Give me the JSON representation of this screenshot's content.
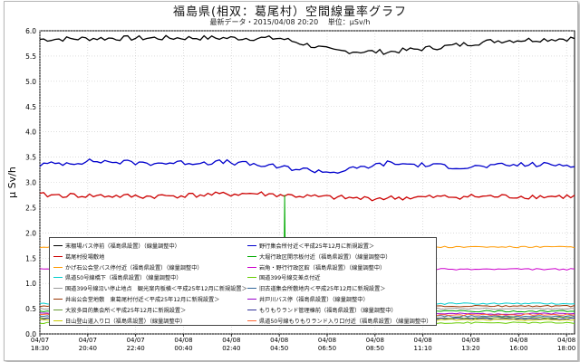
{
  "header": {
    "title": "福島県(相双：葛尾村）空間線量率グラフ",
    "latest_data": "最新データ・2015/04/08 20:20",
    "unit": "単位：μSv/h"
  },
  "chart_data": {
    "type": "line",
    "ylabel": "μ Sv/h",
    "xlabel": "",
    "ylim": [
      0,
      6.0
    ],
    "yticks": [
      "0.0",
      "0.5",
      "1.0",
      "1.5",
      "2.0",
      "2.5",
      "3.0",
      "3.5",
      "4.0",
      "4.5",
      "5.0",
      "5.5",
      "6.0"
    ],
    "xticks": [
      {
        "date": "04/07",
        "time": "18:30"
      },
      {
        "date": "04/07",
        "time": "20:40"
      },
      {
        "date": "04/07",
        "time": "22:40"
      },
      {
        "date": "04/08",
        "time": "00:40"
      },
      {
        "date": "04/08",
        "time": "02:40"
      },
      {
        "date": "04/08",
        "time": "04:50"
      },
      {
        "date": "04/08",
        "time": "06:50"
      },
      {
        "date": "04/08",
        "time": "08:50"
      },
      {
        "date": "04/08",
        "time": "11:10"
      },
      {
        "date": "04/08",
        "time": "13:20"
      },
      {
        "date": "04/08",
        "time": "16:00"
      },
      {
        "date": "04/08",
        "time": "18:00"
      }
    ],
    "grid": true,
    "legend_placement": "lower-left",
    "series": [
      {
        "name": "末棚場バス停前（福島県設置）（線量調整中）",
        "color": "#000000",
        "level": 5.85,
        "points": [
          [
            0,
            5.83
          ],
          [
            0.1,
            5.85
          ],
          [
            0.3,
            5.86
          ],
          [
            0.45,
            5.85
          ],
          [
            0.55,
            5.6
          ],
          [
            0.65,
            5.58
          ],
          [
            0.75,
            5.68
          ],
          [
            0.85,
            5.8
          ],
          [
            1.0,
            5.85
          ]
        ]
      },
      {
        "name": "野行集会所付近＜平成25年12月に新規設置＞",
        "color": "#0000cc",
        "level": 3.35,
        "points": [
          [
            0,
            3.35
          ],
          [
            0.1,
            3.42
          ],
          [
            0.2,
            3.38
          ],
          [
            0.35,
            3.4
          ],
          [
            0.45,
            3.3
          ],
          [
            0.55,
            3.2
          ],
          [
            0.65,
            3.38
          ],
          [
            0.8,
            3.3
          ],
          [
            0.9,
            3.35
          ],
          [
            1.0,
            3.35
          ]
        ]
      },
      {
        "name": "葛尾村役場敷地",
        "color": "#cc0000",
        "level": 2.75,
        "points": [
          [
            0,
            2.75
          ],
          [
            0.2,
            2.72
          ],
          [
            0.4,
            2.78
          ],
          [
            0.5,
            2.72
          ],
          [
            0.6,
            2.68
          ],
          [
            0.8,
            2.72
          ],
          [
            1.0,
            2.72
          ]
        ]
      },
      {
        "name": "大堀行政区開示板付近（福島県設置）（線量調整中）",
        "color": "#00aa00",
        "level": 0.45
      },
      {
        "name": "かげ石公会堂バス停付近（福島県設置）（線量調整中）",
        "color": "#ff9900",
        "level": 1.72
      },
      {
        "name": "岩角・野行行政区館（福島県設置）（線量調整中）",
        "color": "#cc00cc",
        "level": 1.28
      },
      {
        "name": "県道50号線橋下（福島県設置）（線量調整中）",
        "color": "#00cccc",
        "level": 0.6
      },
      {
        "name": "国道399号線交差点付近",
        "color": "#66cc00",
        "level": 0.22
      },
      {
        "name": "国道399号線沿い停止地点　観光案内板横＜平成25年12月に新規設置＞",
        "color": "#999999",
        "level": 0.5
      },
      {
        "name": "旧古道集会所敷地内＜平成25年12月に新規設置＞",
        "color": "#336699",
        "level": 0.35
      },
      {
        "name": "井出公会堂地敷　東葛尾村付近＜平成25年12月に新規設置＞",
        "color": "#993300",
        "level": 0.55
      },
      {
        "name": "井戸川バス停（福島県設置）（線量調整中）",
        "color": "#9900cc",
        "level": 0.4
      },
      {
        "name": "大放多目的集会所＜平成25年12月に新規設置＞",
        "color": "#669933",
        "level": 0.32
      },
      {
        "name": "もりもりランド管理棟前（福島県設置）（線量調整中）",
        "color": "#333399",
        "level": 0.3
      },
      {
        "name": "日山登山道入り口（福島県設置）（線量調整中）",
        "color": "#cccc00",
        "level": 0.28
      },
      {
        "name": "県道50号線もりもりランド入り口付近（福島県設置）（線量調整中）",
        "color": "#ff6633",
        "level": 0.38
      }
    ],
    "annotations": [
      {
        "type": "spike",
        "series": "大堀行政区開示板付近（福島県設置）（線量調整中）",
        "x_time": "04/08 04:50",
        "value": 2.75
      }
    ]
  }
}
